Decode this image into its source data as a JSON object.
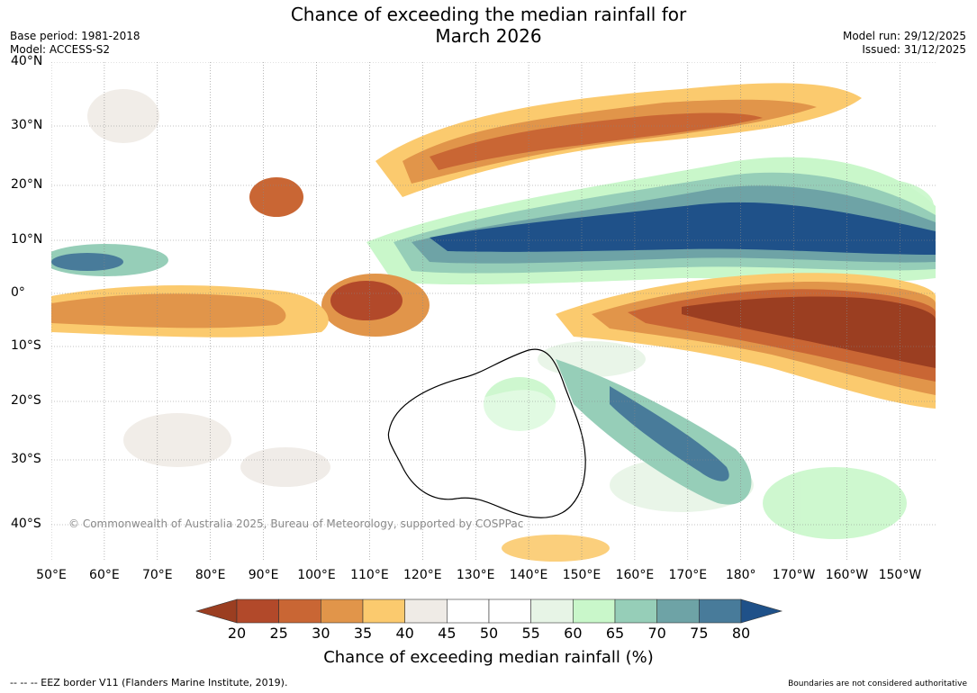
{
  "title": {
    "line1": "Chance of exceeding the median rainfall for",
    "line2": "March 2026"
  },
  "meta_left": {
    "base_period": "Base period: 1981-2018",
    "model": "Model: ACCESS-S2"
  },
  "meta_right": {
    "model_run": "Model run: 29/12/2025",
    "issued": "Issued: 31/12/2025"
  },
  "map": {
    "lat_labels": [
      "40°N",
      "30°N",
      "20°N",
      "10°N",
      "0°",
      "10°S",
      "20°S",
      "30°S",
      "40°S"
    ],
    "lon_labels": [
      "50°E",
      "60°E",
      "70°E",
      "80°E",
      "90°E",
      "100°E",
      "110°E",
      "120°E",
      "130°E",
      "140°E",
      "150°E",
      "160°E",
      "170°E",
      "180°",
      "170°W",
      "160°W",
      "150°W"
    ],
    "copyright": "© Commonwealth of Australia 2025, Bureau of Meteorology, supported by COSPPac",
    "anomaly_regions": [
      {
        "name": "north-pacific-dry-band",
        "category": "below"
      },
      {
        "name": "equatorial-west-pacific-wet-band",
        "category": "above"
      },
      {
        "name": "equatorial-central-pacific-dry-band",
        "category": "below"
      },
      {
        "name": "borneo-dry-area",
        "category": "below"
      },
      {
        "name": "equatorial-indian-ocean-dry-band",
        "category": "below"
      },
      {
        "name": "south-west-pacific-wet-area",
        "category": "above"
      }
    ]
  },
  "colorbar": {
    "ticks": [
      "20",
      "25",
      "30",
      "35",
      "40",
      "45",
      "50",
      "55",
      "60",
      "65",
      "70",
      "75",
      "80"
    ],
    "colors": [
      "#9b3e21",
      "#b2492a",
      "#c96634",
      "#e1954a",
      "#fbca6e",
      "#efebe6",
      "#ffffff",
      "#ffffff",
      "#e7f4e6",
      "#c9f7ca",
      "#96ceb8",
      "#6ea3a6",
      "#487b9a",
      "#1f5189"
    ],
    "units": "Chance of exceeding median rainfall (%)"
  },
  "footer": {
    "left": "--  --  -- EEZ border V11 (Flanders Marine Institute, 2019).",
    "right": "Boundaries are not considered authoritative"
  }
}
